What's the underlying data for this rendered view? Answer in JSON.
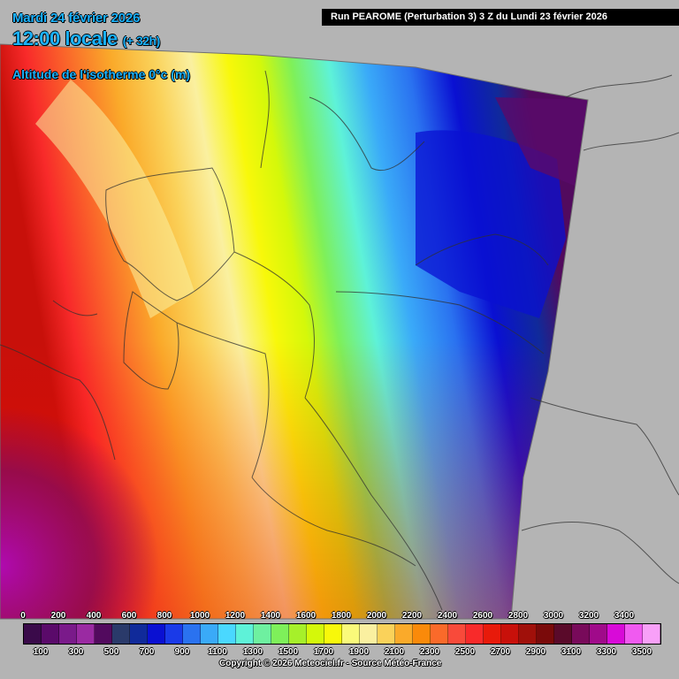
{
  "header": {
    "date": "Mardi 24 février 2026",
    "local_time": "12:00 locale",
    "lead_time": "(+ 32h)",
    "parameter": "Altitude de l'isotherme 0°c (m)",
    "run_info": "Run PEAROME (Perturbation 3) 3 Z du Lundi 23 février 2026"
  },
  "legend": {
    "top_labels": [
      "0",
      "200",
      "400",
      "600",
      "800",
      "1000",
      "1200",
      "1400",
      "1600",
      "1800",
      "2000",
      "2200",
      "2400",
      "2600",
      "2800",
      "3000",
      "3200",
      "3400"
    ],
    "bottom_labels": [
      "100",
      "300",
      "500",
      "700",
      "900",
      "1100",
      "1300",
      "1500",
      "1700",
      "1900",
      "2100",
      "2300",
      "2500",
      "2700",
      "2900",
      "3100",
      "3300",
      "3500"
    ],
    "colors": [
      "#3a0a4a",
      "#5a0a6a",
      "#7a1a8a",
      "#9a2aa2",
      "#520a5e",
      "#2a3a6a",
      "#102a9a",
      "#0a10d2",
      "#1a3ae8",
      "#2a72f0",
      "#3aaaf8",
      "#4ad8ff",
      "#5ef2d8",
      "#6ef0a0",
      "#7ef05a",
      "#a6f02a",
      "#d4f80a",
      "#f8f80a",
      "#fafa7a",
      "#faf0a0",
      "#fad25a",
      "#faaa2a",
      "#fa8a0a",
      "#fa6a2a",
      "#f84a3a",
      "#f82a2a",
      "#e81a0a",
      "#c8100a",
      "#a0100a",
      "#7a0a0a",
      "#5a0a2a",
      "#780a5a",
      "#a00a8a",
      "#d80ad8",
      "#f05af0",
      "#f8a0f8"
    ],
    "copyright": "Copyright © 2026 Meteociel.fr - Source Météo-France"
  },
  "map": {
    "background_color": "#b4b4b4",
    "field": "freezing-level altitude, increasing westward (red/orange) to eastward (blue/purple)"
  }
}
